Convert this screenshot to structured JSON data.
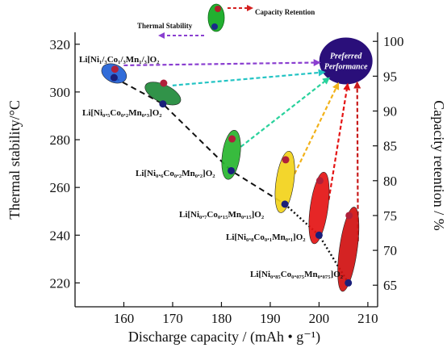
{
  "chart_data": {
    "type": "scatter",
    "xlabel": "Discharge capacity / (mAh • g⁻¹)",
    "ylabel_left": "Thermal stability/°C",
    "ylabel_right": "Capacity retention / %",
    "xlim": [
      150,
      212
    ],
    "ylim_left": [
      210,
      325
    ],
    "ylim_right": [
      61.9,
      101.3
    ],
    "x_ticks": [
      160,
      170,
      180,
      190,
      200,
      210
    ],
    "y_left_ticks": [
      220,
      240,
      260,
      280,
      300,
      320
    ],
    "y_right_ticks": [
      65,
      70,
      75,
      80,
      85,
      90,
      95,
      100
    ],
    "grid": false,
    "legend_position": "top-center",
    "legend": {
      "thermal": "Thermal Stability",
      "capacity": "Capacity Retention"
    },
    "preferred": {
      "line1": "Preferred",
      "line2": "Performance",
      "x": 205.5,
      "y": 313,
      "color": "#2a0f7a"
    },
    "materials": [
      {
        "label": "Li[Ni₁/₃Co₁/₃Mn₁/₃]O₂",
        "capacity": 158,
        "thermal": 306,
        "retention": 96,
        "ellipse_color": "#1f5fd6",
        "arrow_color": "#8a3fd0"
      },
      {
        "label": "Li[Ni₀.₅Co₀.₂Mn₀.₃]O₂",
        "capacity": 168,
        "thermal": 295,
        "retention": 94,
        "ellipse_color": "#1f8a3a",
        "arrow_color": "#24c4c4"
      },
      {
        "label": "Li[Ni₀.₆Co₀.₂Mn₀.₂]O₂",
        "capacity": 182,
        "thermal": 267,
        "retention": 86,
        "ellipse_color": "#27b52e",
        "arrow_color": "#29d29c"
      },
      {
        "label": "Li[Ni₀.₇Co₀.₁₅Mn₀.₁₅]O₂",
        "capacity": 193,
        "thermal": 253,
        "retention": 83,
        "ellipse_color": "#f2d21a",
        "arrow_color": "#f2b21a"
      },
      {
        "label": "Li[Ni₀.₈Co₀.₁Mn₀.₁]O₂",
        "capacity": 200,
        "thermal": 240,
        "retention": 80,
        "ellipse_color": "#e41414",
        "arrow_color": "#e41414"
      },
      {
        "label": "Li[Ni₀.₈₅Co₀.₀₇₅Mn₀.₀₇₅]O₂",
        "capacity": 206,
        "thermal": 220,
        "retention": 75,
        "ellipse_color": "#d01010",
        "arrow_color": "#c81a1a"
      }
    ]
  }
}
